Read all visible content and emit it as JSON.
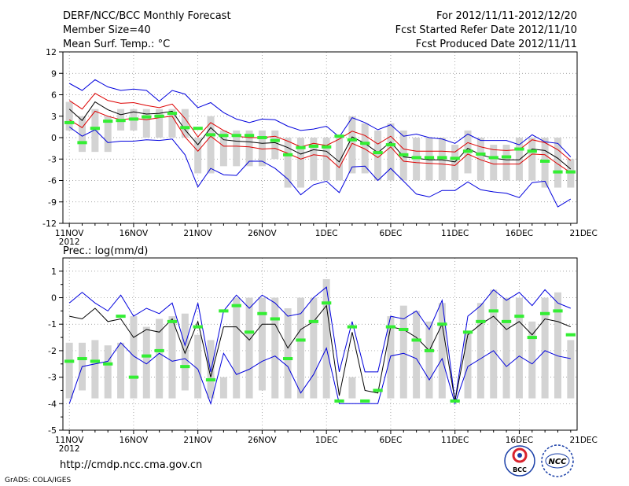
{
  "header": {
    "left": [
      "DERF/NCC/BCC Monthly Forecast",
      "Member Size=40",
      "Mean Surf. Temp.: °C"
    ],
    "right": [
      "For 2012/11/11-2012/12/20",
      "Fcst Started Refer Date 2012/11/10",
      "Fcst Produced Date 2012/11/11"
    ]
  },
  "footer": {
    "url": "http://cmdp.ncc.cma.gov.cn",
    "grads": "GrADS: COLA/IGES",
    "logo_bcc": "BCC",
    "logo_ncc": "NCC"
  },
  "colors": {
    "bar": "#d3d3d3",
    "clim": "#33ee33",
    "upper": "#0000dd",
    "mean": "#000000",
    "lower": "#dd0000",
    "grid": "#888888"
  },
  "chart_data": [
    {
      "type": "line",
      "title": "Mean Surf. Temp.: °C",
      "ylim": [
        -12,
        12
      ],
      "yticks": [
        -12,
        -9,
        -6,
        -3,
        0,
        3,
        6,
        9,
        12
      ],
      "xticks": [
        {
          "i": 0,
          "label": "11NOV",
          "sub": "2012"
        },
        {
          "i": 5,
          "label": "16NOV"
        },
        {
          "i": 10,
          "label": "21NOV"
        },
        {
          "i": 15,
          "label": "26NOV"
        },
        {
          "i": 20,
          "label": "1DEC"
        },
        {
          "i": 25,
          "label": "6DEC"
        },
        {
          "i": 30,
          "label": "11DEC"
        },
        {
          "i": 35,
          "label": "16DEC"
        },
        {
          "i": 40,
          "label": "21DEC"
        }
      ],
      "ensemble_range": {
        "top": [
          5,
          3,
          4,
          3,
          4,
          4,
          4,
          4,
          4,
          4,
          0,
          3,
          1,
          1,
          1,
          1,
          1,
          0,
          0,
          0,
          0,
          0,
          3,
          2,
          1,
          2,
          1,
          0,
          0,
          0,
          -1,
          1,
          0,
          -1,
          -1,
          0,
          0,
          0,
          0,
          -3
        ],
        "bottom": [
          1,
          -2,
          -2,
          -2,
          1,
          1,
          0,
          0,
          0,
          0,
          -5,
          -5,
          -4,
          -4,
          -4,
          -4,
          -3,
          -7,
          -7,
          -6,
          -6,
          -6,
          -5,
          -5,
          -6,
          -6,
          -6,
          -6,
          -6,
          -6,
          -6,
          -5,
          -6,
          -6,
          -6,
          -6,
          -6,
          -7,
          -7,
          -7
        ]
      },
      "series": [
        {
          "name": "climatology",
          "values": [
            2.1,
            -0.7,
            1.3,
            2.3,
            2.4,
            2.6,
            2.9,
            3.0,
            3.4,
            1.4,
            1.3,
            0.4,
            0.3,
            0.3,
            0.3,
            0.0,
            -0.4,
            -2.4,
            -1.4,
            -1.2,
            -1.3,
            0.2,
            -0.3,
            -0.8,
            -2.1,
            -1.0,
            -2.4,
            -2.8,
            -2.8,
            -2.8,
            -2.9,
            -1.9,
            -2.3,
            -2.8,
            -2.7,
            -1.6,
            -1.9,
            -3.3,
            -4.8,
            -4.8
          ]
        },
        {
          "name": "upper",
          "values": [
            7.6,
            6.6,
            8.1,
            7.1,
            6.6,
            6.8,
            6.6,
            5.1,
            6.6,
            6.1,
            4.2,
            4.9,
            3.5,
            2.6,
            2.1,
            2.6,
            2.5,
            1.6,
            1.0,
            1.2,
            1.6,
            0.1,
            2.8,
            2.1,
            1.1,
            1.8,
            0.2,
            0.5,
            0.0,
            -0.2,
            -0.8,
            0.5,
            -0.4,
            -0.4,
            -0.4,
            -1.0,
            0.4,
            -0.6,
            -0.8,
            -2.7
          ]
        },
        {
          "name": "upper-inner",
          "values": [
            5.2,
            4.0,
            6.2,
            5.2,
            4.8,
            4.9,
            4.5,
            4.2,
            4.7,
            2.7,
            0.1,
            2.1,
            1.0,
            0.2,
            0.0,
            0.0,
            0.2,
            -0.5,
            -1.3,
            -0.8,
            -1.1,
            -0.2,
            0.9,
            0.3,
            -0.9,
            0.2,
            -1.6,
            -1.9,
            -1.9,
            -1.9,
            -2.0,
            -0.7,
            -1.3,
            -1.7,
            -1.8,
            -1.7,
            -0.3,
            -0.7,
            -1.7,
            -3.2
          ]
        },
        {
          "name": "mean",
          "values": [
            4.0,
            2.4,
            5.0,
            3.9,
            3.2,
            3.6,
            3.3,
            3.4,
            3.7,
            1.1,
            -1.0,
            1.4,
            -0.3,
            -0.5,
            -0.6,
            -0.8,
            -0.7,
            -1.4,
            -2.3,
            -1.7,
            -1.9,
            -3.4,
            0.1,
            -0.8,
            -2.1,
            -0.6,
            -2.7,
            -2.9,
            -3.1,
            -3.1,
            -3.4,
            -1.5,
            -2.4,
            -2.9,
            -3.1,
            -3.1,
            -1.6,
            -1.8,
            -2.9,
            -4.4
          ]
        },
        {
          "name": "lower-inner",
          "values": [
            2.5,
            1.4,
            3.7,
            3.0,
            2.5,
            2.7,
            2.5,
            2.8,
            3.0,
            0.1,
            -1.9,
            0.2,
            -1.2,
            -1.2,
            -1.3,
            -1.6,
            -1.5,
            -2.2,
            -3.0,
            -2.4,
            -2.6,
            -4.2,
            -0.8,
            -1.6,
            -2.8,
            -1.3,
            -3.3,
            -3.5,
            -3.6,
            -3.7,
            -3.9,
            -2.3,
            -3.1,
            -3.7,
            -3.7,
            -3.7,
            -2.3,
            -2.4,
            -3.7,
            -4.9
          ]
        },
        {
          "name": "lower",
          "values": [
            1.5,
            0.2,
            1.1,
            -0.7,
            -0.5,
            -0.5,
            -0.3,
            -0.4,
            -0.2,
            -2.4,
            -6.9,
            -4.3,
            -5.2,
            -5.3,
            -3.3,
            -3.3,
            -4.3,
            -5.8,
            -8.0,
            -6.6,
            -6.1,
            -7.7,
            -4.1,
            -4.0,
            -6.0,
            -4.3,
            -6.1,
            -7.9,
            -8.3,
            -7.4,
            -7.4,
            -6.2,
            -7.3,
            -7.6,
            -7.8,
            -8.4,
            -6.3,
            -6.1,
            -9.7,
            -8.6
          ]
        }
      ]
    },
    {
      "type": "line",
      "title": "Prec.: log(mm/d)",
      "ylim": [
        -5,
        1.5
      ],
      "yticks": [
        -5,
        -4,
        -3,
        -2,
        -1,
        0,
        1
      ],
      "xticks": [
        {
          "i": 0,
          "label": "11NOV",
          "sub": "2012"
        },
        {
          "i": 5,
          "label": "16NOV"
        },
        {
          "i": 10,
          "label": "21NOV"
        },
        {
          "i": 15,
          "label": "26NOV"
        },
        {
          "i": 20,
          "label": "1DEC"
        },
        {
          "i": 25,
          "label": "6DEC"
        },
        {
          "i": 30,
          "label": "11DEC"
        },
        {
          "i": 35,
          "label": "16DEC"
        },
        {
          "i": 40,
          "label": "21DEC"
        }
      ],
      "ensemble_range": {
        "top": [
          -1.7,
          -1.7,
          -1.6,
          -1.8,
          -1.7,
          -0.7,
          -1.1,
          -0.8,
          -0.7,
          -0.6,
          -1.4,
          -1.6,
          -3.0,
          0.0,
          0.0,
          0.0,
          0.0,
          -0.4,
          0.0,
          0.0,
          0.7,
          -3.8,
          -3.0,
          -3.8,
          -3.8,
          -0.7,
          -0.3,
          -0.5,
          -0.9,
          -0.2,
          -3.8,
          -1.3,
          -0.2,
          0.3,
          0.0,
          0.0,
          -0.9,
          0.0,
          0.2,
          -1.6
        ],
        "bottom": [
          -3.8,
          -3.5,
          -3.8,
          -3.8,
          -3.8,
          -3.8,
          -3.8,
          -3.8,
          -3.8,
          -3.5,
          -3.8,
          -3.8,
          -3.8,
          -3.8,
          -3.8,
          -3.5,
          -3.8,
          -3.8,
          -3.8,
          -3.8,
          -3.8,
          -3.8,
          -3.8,
          -3.8,
          -3.8,
          -3.8,
          -3.8,
          -3.8,
          -3.8,
          -3.8,
          -3.8,
          -3.8,
          -3.8,
          -3.8,
          -3.8,
          -3.8,
          -3.8,
          -3.8,
          -3.8,
          -3.8
        ]
      },
      "series": [
        {
          "name": "climatology",
          "values": [
            -2.4,
            -2.3,
            -2.4,
            -2.5,
            -0.7,
            -3.0,
            -2.2,
            -2.0,
            -0.9,
            -2.6,
            -1.1,
            -3.1,
            -0.5,
            -0.3,
            -1.3,
            -0.6,
            -0.8,
            -2.3,
            -1.6,
            -0.9,
            -0.2,
            -3.9,
            -1.1,
            -3.9,
            -3.5,
            -1.1,
            -1.2,
            -1.6,
            -2.0,
            -1.0,
            -3.9,
            -1.3,
            -0.9,
            -0.5,
            -0.9,
            -0.7,
            -1.5,
            -0.6,
            -0.5,
            -1.4
          ]
        },
        {
          "name": "upper",
          "values": [
            -0.2,
            0.2,
            -0.2,
            -0.5,
            0.1,
            -0.7,
            -0.4,
            -0.6,
            -0.2,
            -1.8,
            -0.2,
            -2.8,
            -0.5,
            0.1,
            -0.4,
            0.1,
            -0.2,
            -0.7,
            -0.6,
            0.0,
            0.4,
            -2.8,
            -0.9,
            -2.8,
            -2.8,
            -0.7,
            -0.8,
            -0.5,
            -1.2,
            -0.1,
            -3.9,
            -0.7,
            -0.3,
            0.3,
            -0.1,
            0.2,
            -0.3,
            0.3,
            -0.2,
            -0.4
          ]
        },
        {
          "name": "mean",
          "values": [
            -0.7,
            -0.8,
            -0.4,
            -0.9,
            -0.8,
            -1.5,
            -1.2,
            -1.3,
            -0.8,
            -2.1,
            -0.9,
            -3.0,
            -1.1,
            -1.1,
            -1.6,
            -1.0,
            -1.0,
            -1.9,
            -1.2,
            -0.9,
            -0.3,
            -3.7,
            -1.3,
            -3.5,
            -3.6,
            -1.1,
            -1.2,
            -1.5,
            -2.0,
            -1.0,
            -3.9,
            -1.4,
            -1.0,
            -0.7,
            -1.2,
            -0.9,
            -1.4,
            -0.8,
            -0.9,
            -1.1
          ]
        },
        {
          "name": "lower",
          "values": [
            -4.0,
            -2.6,
            -2.5,
            -2.4,
            -1.7,
            -2.2,
            -2.5,
            -2.1,
            -2.4,
            -2.3,
            -2.7,
            -4.0,
            -2.1,
            -2.9,
            -2.7,
            -2.4,
            -2.2,
            -2.6,
            -3.6,
            -2.9,
            -1.9,
            -4.0,
            -4.0,
            -4.0,
            -4.0,
            -2.2,
            -2.1,
            -2.3,
            -3.1,
            -2.3,
            -4.0,
            -2.6,
            -2.3,
            -2.0,
            -2.6,
            -2.2,
            -2.5,
            -2.0,
            -2.2,
            -2.3
          ]
        }
      ]
    }
  ]
}
